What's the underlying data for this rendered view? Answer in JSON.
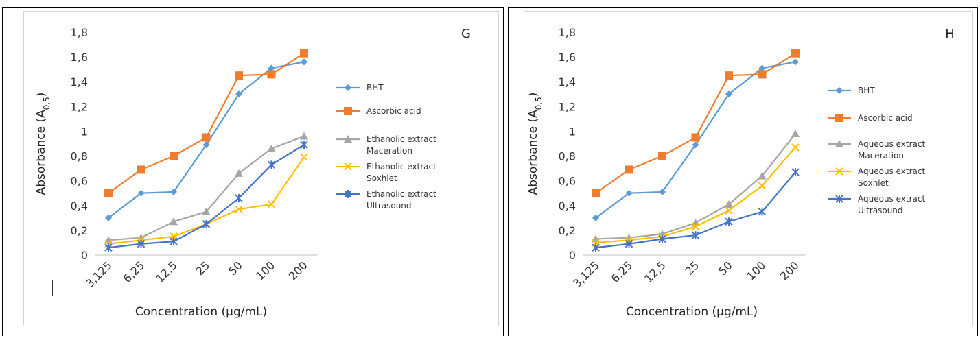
{
  "chart_data": [
    {
      "type": "line",
      "panel": "G",
      "categories": [
        "3,125",
        "6,25",
        "12,5",
        "25",
        "50",
        "100",
        "200"
      ],
      "ylabel": "Absorbance (A",
      "ylabel_sub": "0,5",
      "ylabel_close": ")",
      "xlabel": "Concentration (µg/mL)",
      "ylim": [
        0,
        1.8
      ],
      "yticks": [
        "0",
        "0,2",
        "0,4",
        "0,6",
        "0,8",
        "1",
        "1,2",
        "1,4",
        "1,6",
        "1,8"
      ],
      "grid": false,
      "legend_position": "right",
      "series": [
        {
          "name": "BHT",
          "name_lines": [
            "BHT"
          ],
          "color": "#5B9BD5",
          "marker": "diamond",
          "values": [
            0.3,
            0.5,
            0.51,
            0.89,
            1.3,
            1.51,
            1.56
          ]
        },
        {
          "name": "Ascorbic acid",
          "name_lines": [
            "Ascorbic acid"
          ],
          "color": "#ED7D31",
          "marker": "square",
          "values": [
            0.5,
            0.69,
            0.8,
            0.95,
            1.45,
            1.46,
            1.63
          ]
        },
        {
          "name": "Ethanolic extract Maceration",
          "name_lines": [
            "Ethanolic extract",
            "Maceration"
          ],
          "color": "#A5A5A5",
          "marker": "triangle",
          "values": [
            0.12,
            0.14,
            0.27,
            0.35,
            0.66,
            0.86,
            0.96
          ]
        },
        {
          "name": "Ethanolic extract Soxhlet",
          "name_lines": [
            "Ethanolic extract",
            "Soxhlet"
          ],
          "color": "#FFC000",
          "marker": "x",
          "values": [
            0.09,
            0.12,
            0.15,
            0.25,
            0.37,
            0.41,
            0.79
          ]
        },
        {
          "name": "Ethanolic extract Ultrasound",
          "name_lines": [
            "Ethanolic extract",
            "Ultrasound"
          ],
          "color": "#4472C4",
          "marker": "star",
          "values": [
            0.06,
            0.09,
            0.11,
            0.25,
            0.46,
            0.73,
            0.89
          ]
        }
      ]
    },
    {
      "type": "line",
      "panel": "H",
      "categories": [
        "3,125",
        "6,25",
        "12,5",
        "25",
        "50",
        "100",
        "200"
      ],
      "ylabel": "Absorbance (A",
      "ylabel_sub": "0,5",
      "ylabel_close": ")",
      "xlabel": "Concentration (µg/mL)",
      "ylim": [
        0,
        1.8
      ],
      "yticks": [
        "0",
        "0,2",
        "0,4",
        "0,6",
        "0,8",
        "1",
        "1,2",
        "1,4",
        "1,6",
        "1,8"
      ],
      "grid": false,
      "legend_position": "right",
      "series": [
        {
          "name": "BHT",
          "name_lines": [
            "BHT"
          ],
          "color": "#5B9BD5",
          "marker": "diamond",
          "values": [
            0.3,
            0.5,
            0.51,
            0.89,
            1.3,
            1.51,
            1.56
          ]
        },
        {
          "name": "Ascorbic acid",
          "name_lines": [
            "Ascorbic acid"
          ],
          "color": "#ED7D31",
          "marker": "square",
          "values": [
            0.5,
            0.69,
            0.8,
            0.95,
            1.45,
            1.46,
            1.63
          ]
        },
        {
          "name": "Aqueous extract Maceration",
          "name_lines": [
            "Aqueous extract",
            "Maceration"
          ],
          "color": "#A5A5A5",
          "marker": "triangle",
          "values": [
            0.13,
            0.14,
            0.17,
            0.26,
            0.41,
            0.64,
            0.98
          ]
        },
        {
          "name": "Aqueous extract Soxhlet",
          "name_lines": [
            "Aqueous extract",
            "Soxhlet"
          ],
          "color": "#FFC000",
          "marker": "x",
          "values": [
            0.1,
            0.12,
            0.15,
            0.23,
            0.36,
            0.56,
            0.87
          ]
        },
        {
          "name": "Aqueous extract Ultrasound",
          "name_lines": [
            "Aqueous extract",
            "Ultrasound"
          ],
          "color": "#4472C4",
          "marker": "star",
          "values": [
            0.06,
            0.09,
            0.13,
            0.16,
            0.27,
            0.35,
            0.67
          ]
        }
      ]
    }
  ]
}
